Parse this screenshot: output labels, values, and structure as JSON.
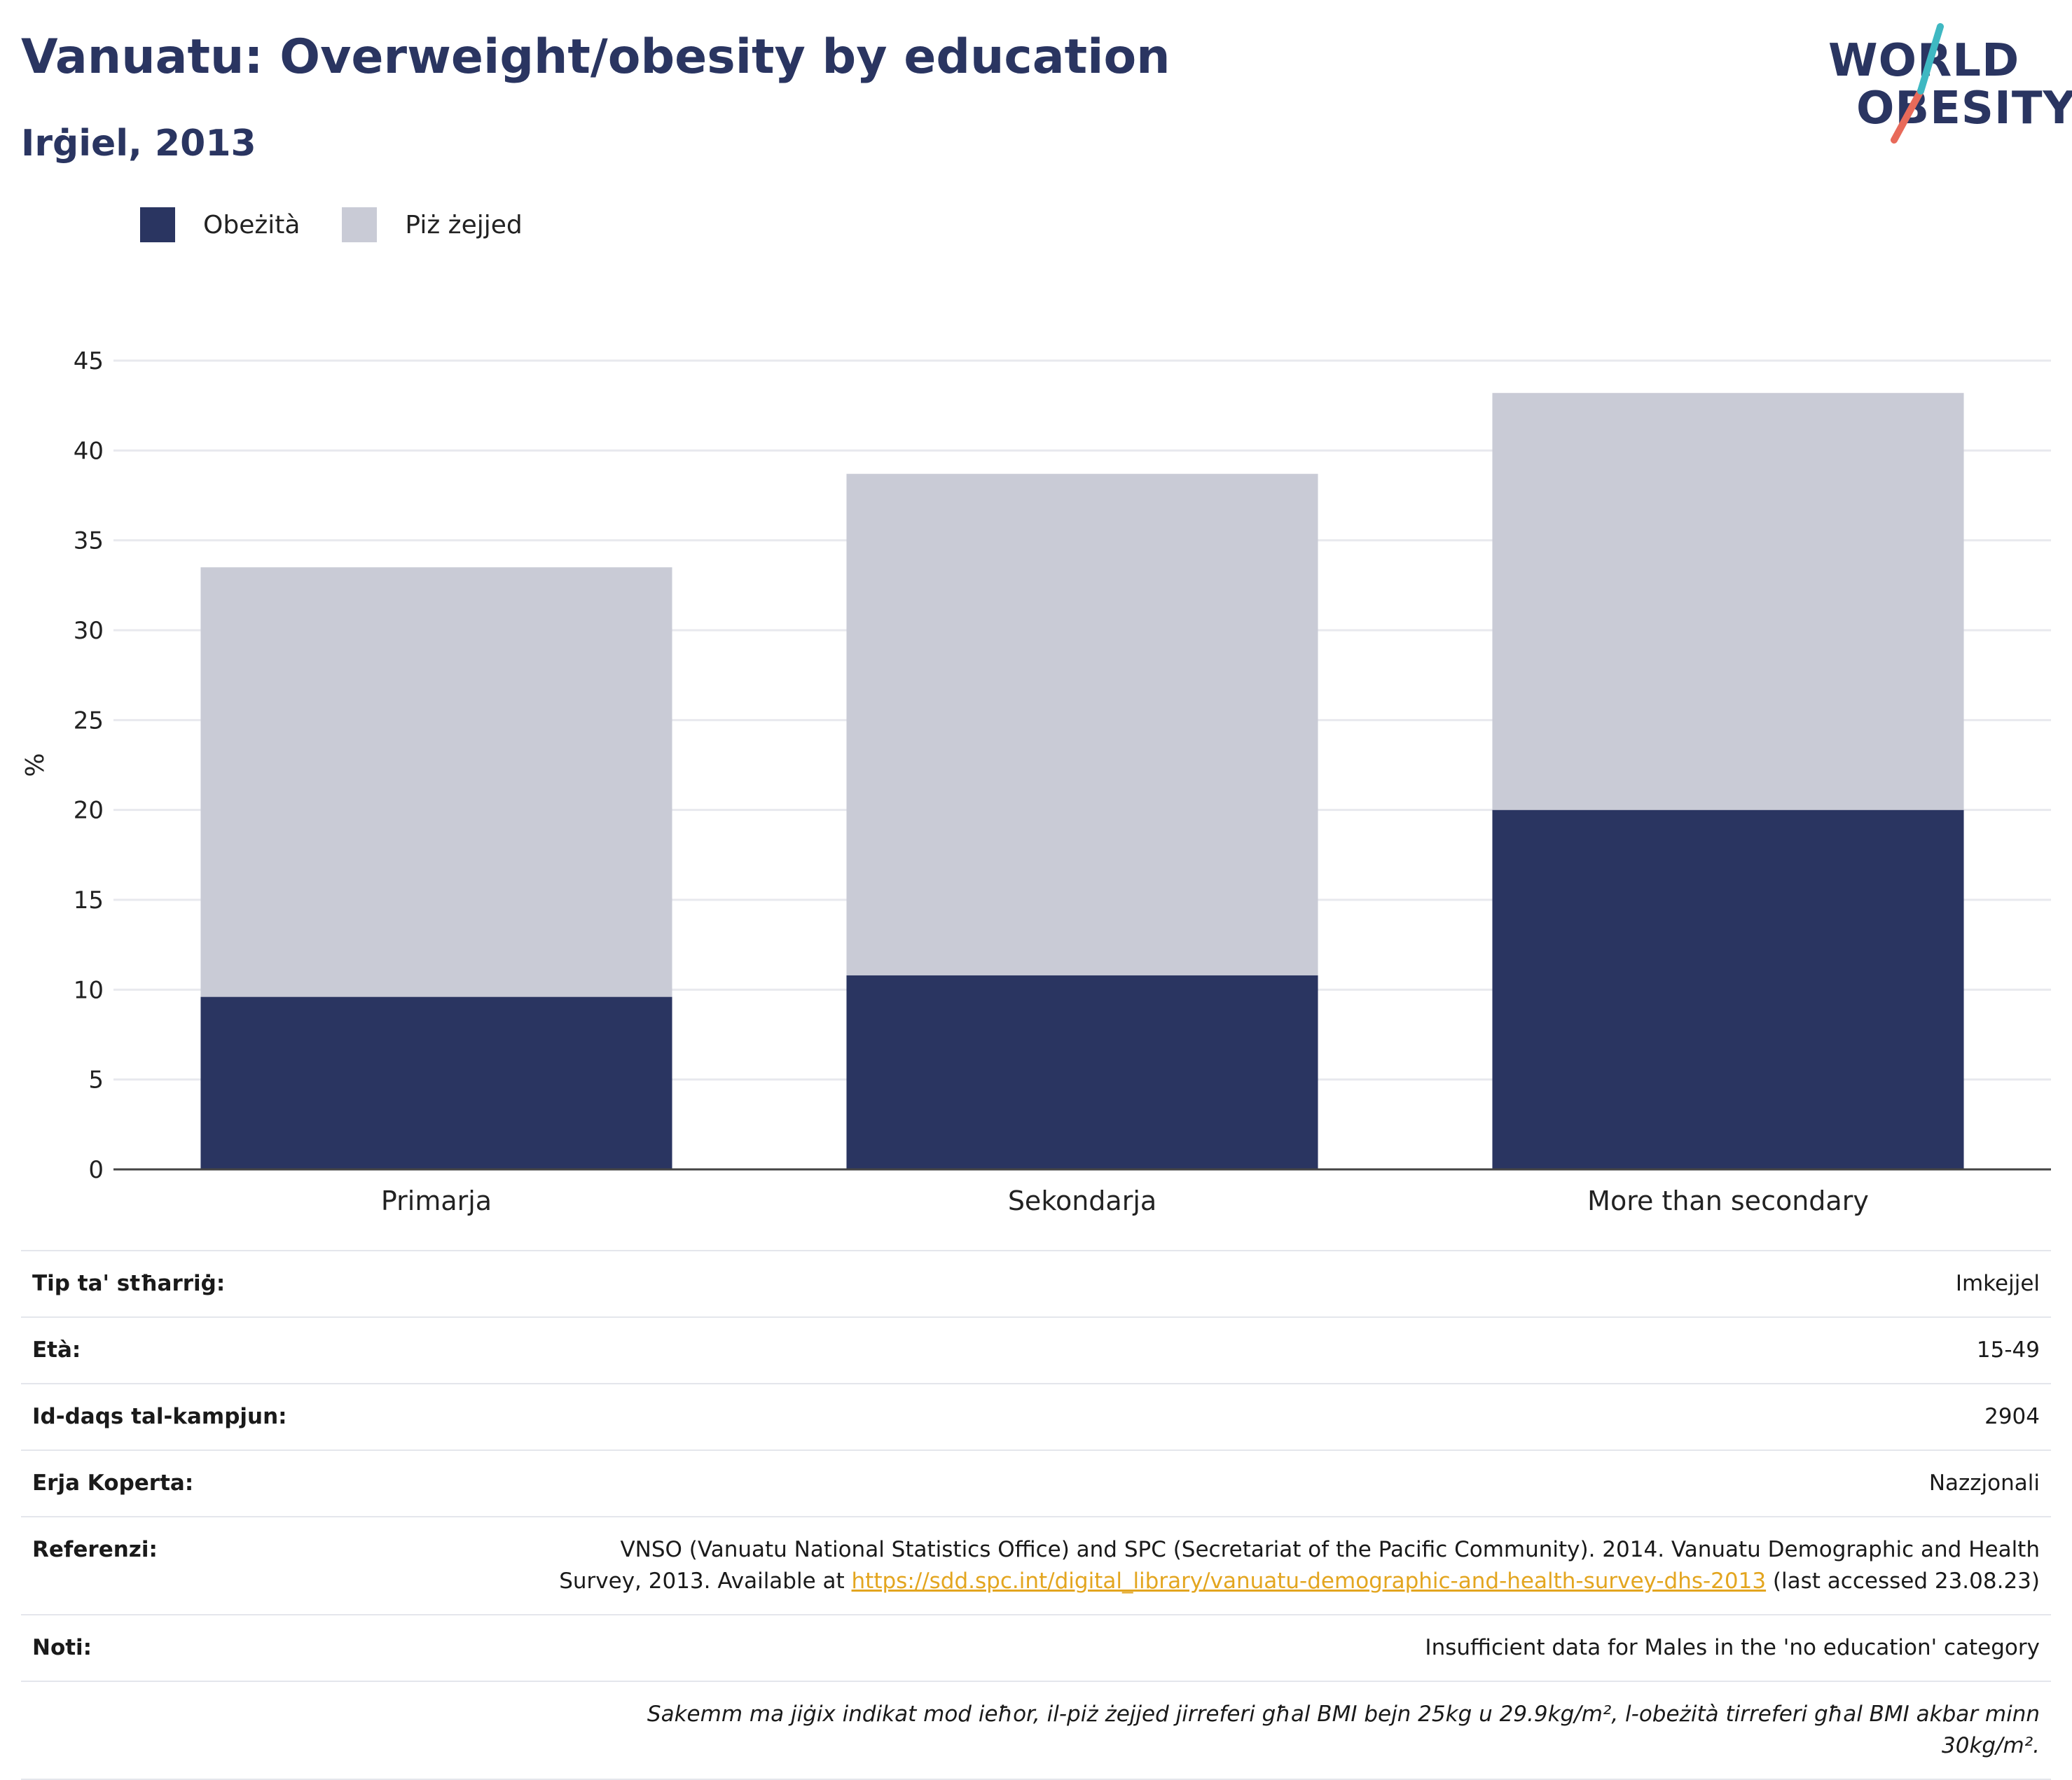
{
  "header": {
    "title": "Vanuatu: Overweight/obesity by education",
    "subtitle": "Irġiel, 2013"
  },
  "logo": {
    "line1": "WORLD",
    "line2": "OBESITY"
  },
  "colors": {
    "obesity": "#2a3561",
    "overweight": "#c9cbd6",
    "title": "#2a3561",
    "link": "#e3a51f",
    "logo_teal": "#3fb8c2",
    "logo_coral": "#e86a5a"
  },
  "legend": [
    {
      "label": "Obeżità",
      "color": "#2a3561"
    },
    {
      "label": "Piż żejjed",
      "color": "#c9cbd6"
    }
  ],
  "chart_data": {
    "type": "bar",
    "stacked": true,
    "categories": [
      "Primarja",
      "Sekondarja",
      "More than secondary"
    ],
    "series": [
      {
        "name": "Obeżità",
        "values": [
          9.6,
          10.8,
          20.0
        ]
      },
      {
        "name": "Piż żejjed",
        "values": [
          23.9,
          27.9,
          23.2
        ]
      }
    ],
    "totals": [
      33.5,
      38.7,
      43.2
    ],
    "ylabel": "%",
    "ylim": [
      0,
      45
    ],
    "yticks": [
      0,
      5,
      10,
      15,
      20,
      25,
      30,
      35,
      40,
      45
    ],
    "grid": true,
    "legend_position": "top-left"
  },
  "info": [
    {
      "key": "Tip ta' stħarriġ:",
      "value": "Imkejjel"
    },
    {
      "key": "Età:",
      "value": "15-49"
    },
    {
      "key": "Id-daqs tal-kampjun:",
      "value": "2904"
    },
    {
      "key": "Erja Koperta:",
      "value": "Nazzjonali"
    }
  ],
  "reference": {
    "key": "Referenzi:",
    "text_before": "VNSO (Vanuatu National Statistics Office) and SPC (Secretariat of the Pacific Community). 2014. Vanuatu Demographic and Health Survey, 2013. Available at ",
    "link": "https://sdd.spc.int/digital_library/vanuatu-demographic-and-health-survey-dhs-2013",
    "text_after": " (last accessed 23.08.23)"
  },
  "notes": {
    "key": "Noti:",
    "value": "Insufficient data for Males in the 'no education' category"
  },
  "footnote": "Sakemm ma jiġix indikat mod ieħor, il-piż żejjed jirreferi għal BMI bejn 25kg u 29.9kg/m², l-obeżità tirreferi għal BMI akbar minn 30kg/m²."
}
